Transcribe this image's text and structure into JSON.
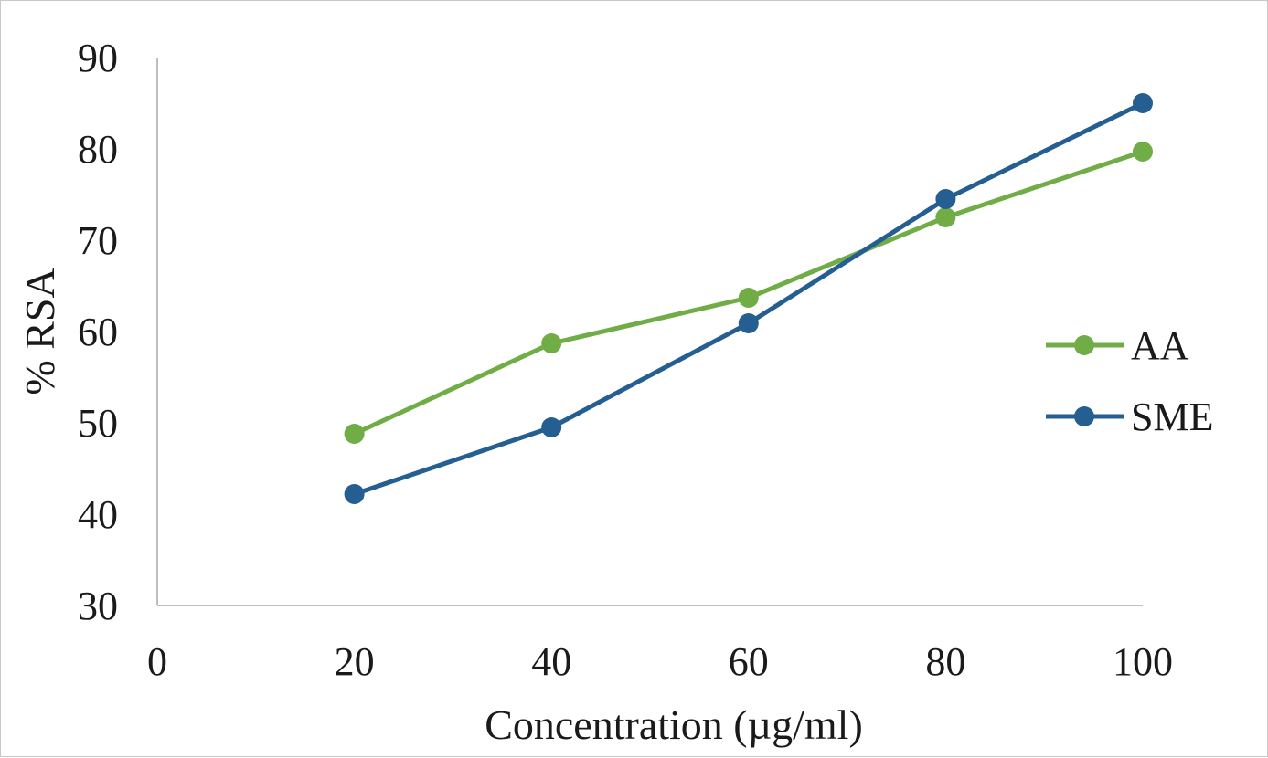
{
  "chart_data": {
    "type": "line",
    "title": "",
    "xlabel": "Concentration (µg/ml)",
    "ylabel": "% RSA",
    "xlim": [
      0,
      100
    ],
    "ylim": [
      30,
      90
    ],
    "x_ticks": [
      "0",
      "20",
      "40",
      "60",
      "80",
      "100"
    ],
    "y_ticks": [
      "30",
      "40",
      "50",
      "60",
      "70",
      "80",
      "90"
    ],
    "grid": false,
    "legend_position": "right",
    "series": [
      {
        "name": "AA",
        "color": "#70ad47",
        "x": [
          20,
          40,
          60,
          80,
          100
        ],
        "y": [
          48.8,
          58.7,
          63.7,
          72.5,
          79.7
        ]
      },
      {
        "name": "SME",
        "color": "#255e91",
        "x": [
          20,
          40,
          60,
          80,
          100
        ],
        "y": [
          42.2,
          49.5,
          60.9,
          74.5,
          85.0
        ]
      }
    ]
  }
}
